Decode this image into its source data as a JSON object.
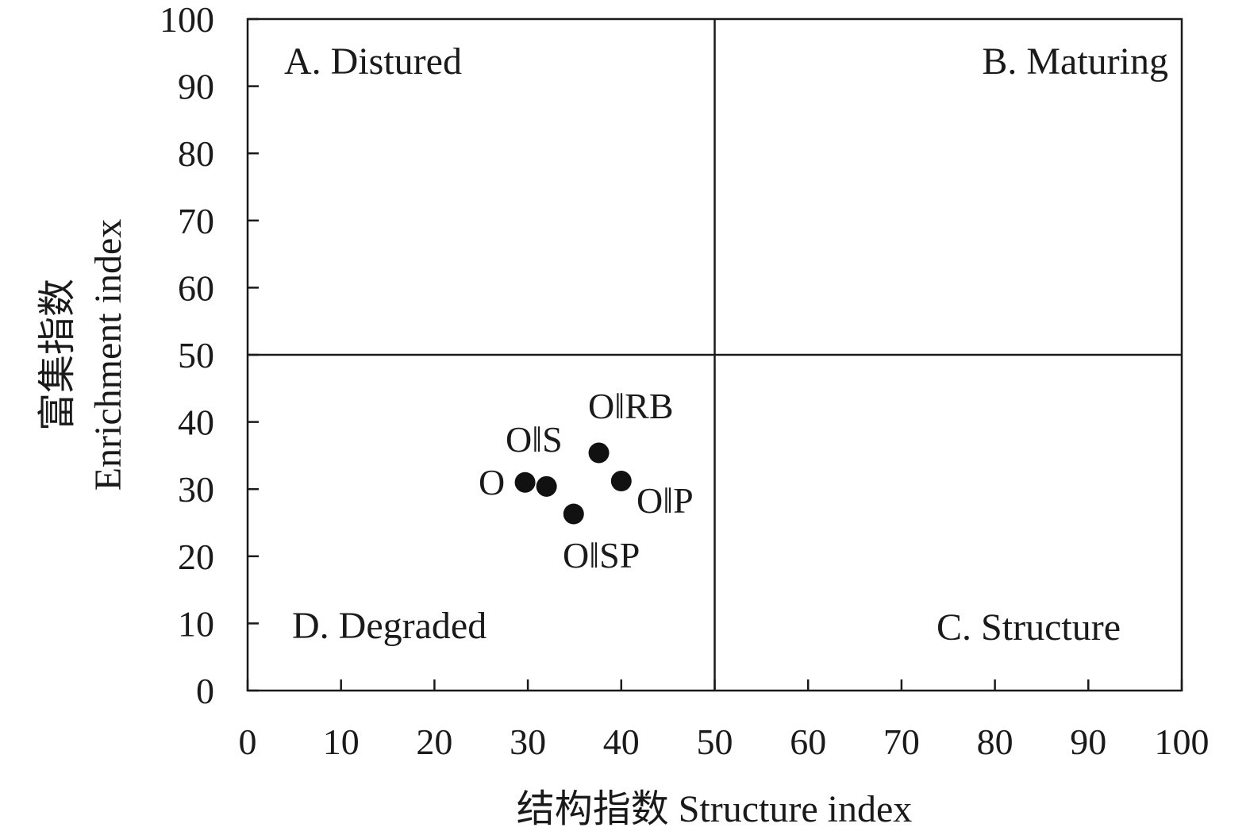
{
  "chart_data": {
    "type": "scatter",
    "title": "",
    "xlabel": "结构指数 Structure index",
    "ylabel_cn": "富集指数",
    "ylabel_en": "Enrichment index",
    "xlim": [
      0,
      100
    ],
    "ylim": [
      0,
      100
    ],
    "xticks": [
      0,
      10,
      20,
      30,
      40,
      50,
      60,
      70,
      80,
      90,
      100
    ],
    "yticks": [
      0,
      10,
      20,
      30,
      40,
      50,
      60,
      70,
      80,
      90,
      100
    ],
    "divider_x": 50,
    "divider_y": 50,
    "grid": false,
    "quadrants": [
      {
        "id": "A",
        "label": "A. Distured"
      },
      {
        "id": "B",
        "label": "B. Maturing"
      },
      {
        "id": "C",
        "label": "C. Structure"
      },
      {
        "id": "D",
        "label": "D. Degraded"
      }
    ],
    "points": [
      {
        "label": "O",
        "x": 29.7,
        "y": 31.0
      },
      {
        "label": "O‖S",
        "x": 32.0,
        "y": 30.4
      },
      {
        "label": "O‖RB",
        "x": 37.6,
        "y": 35.4
      },
      {
        "label": "O‖P",
        "x": 40.0,
        "y": 31.2
      },
      {
        "label": "O‖SP",
        "x": 34.9,
        "y": 26.3
      }
    ],
    "colors": {
      "axis": "#1a1a1a",
      "point": "#111111"
    }
  }
}
